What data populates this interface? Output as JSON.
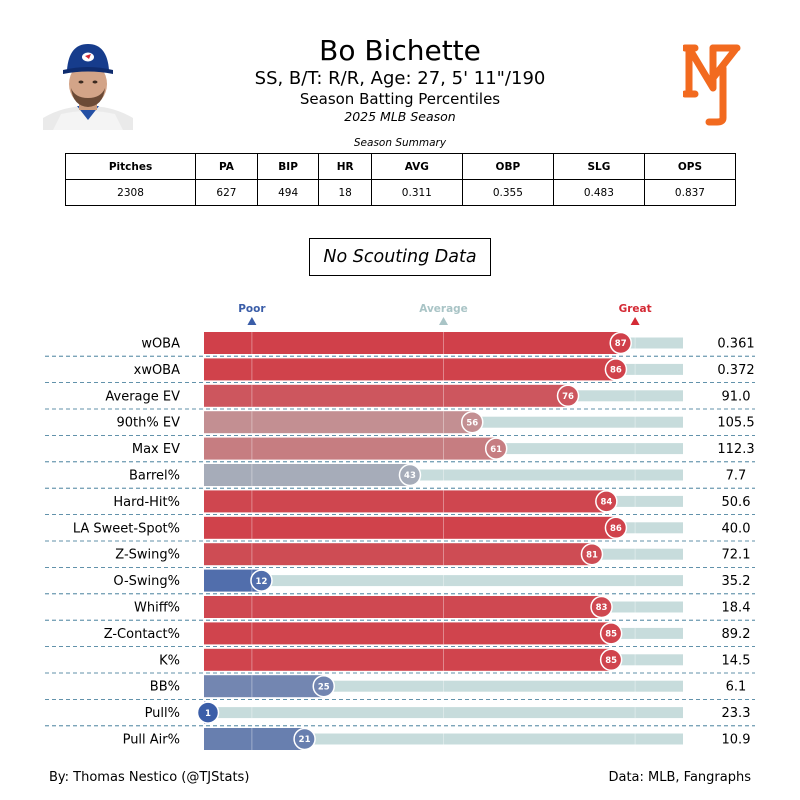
{
  "header": {
    "player_name": "Bo Bichette",
    "bio_line": "SS, B/T: R/R, Age: 27, 5' 11\"/190",
    "subtitle": "Season Batting Percentiles",
    "season_label": "2025 MLB Season"
  },
  "summary": {
    "title": "Season Summary",
    "headers": [
      "Pitches",
      "PA",
      "BIP",
      "HR",
      "AVG",
      "OBP",
      "SLG",
      "OPS"
    ],
    "values": [
      "2308",
      "627",
      "494",
      "18",
      "0.311",
      "0.355",
      "0.483",
      "0.837"
    ]
  },
  "scouting": {
    "text": "No Scouting Data"
  },
  "chart_data": {
    "type": "bar",
    "orientation": "horizontal",
    "xlim": [
      0,
      100
    ],
    "reference_labels": [
      {
        "label": "Poor",
        "position": 10,
        "color": "#3a5da8"
      },
      {
        "label": "Average",
        "position": 50,
        "color": "#a9c4c6"
      },
      {
        "label": "Great",
        "position": 90,
        "color": "#d42a35"
      }
    ],
    "categories": [
      "wOBA",
      "xwOBA",
      "Average EV",
      "90th% EV",
      "Max EV",
      "Barrel%",
      "Hard-Hit%",
      "LA Sweet-Spot%",
      "Z-Swing%",
      "O-Swing%",
      "Whiff%",
      "Z-Contact%",
      "K%",
      "BB%",
      "Pull%",
      "Pull Air%"
    ],
    "percentiles": [
      87,
      86,
      76,
      56,
      61,
      43,
      84,
      86,
      81,
      12,
      83,
      85,
      85,
      25,
      1,
      21
    ],
    "stat_values": [
      "0.361",
      "0.372",
      "91.0",
      "105.5",
      "112.3",
      "7.7",
      "50.6",
      "40.0",
      "72.1",
      "35.2",
      "18.4",
      "89.2",
      "14.5",
      "6.1",
      "23.3",
      "10.9"
    ],
    "colors": {
      "poor": "#3a5da8",
      "average": "#bcbcbc",
      "great": "#d42a35",
      "track": "#c7dcdc",
      "divider": "#2f6f8f"
    }
  },
  "footer": {
    "credit": "By: Thomas Nestico (@TJStats)",
    "source": "Data: MLB, Fangraphs"
  },
  "icons": {
    "player_photo": "player-headshot-icon",
    "team_logo": "mets-logo-icon"
  }
}
